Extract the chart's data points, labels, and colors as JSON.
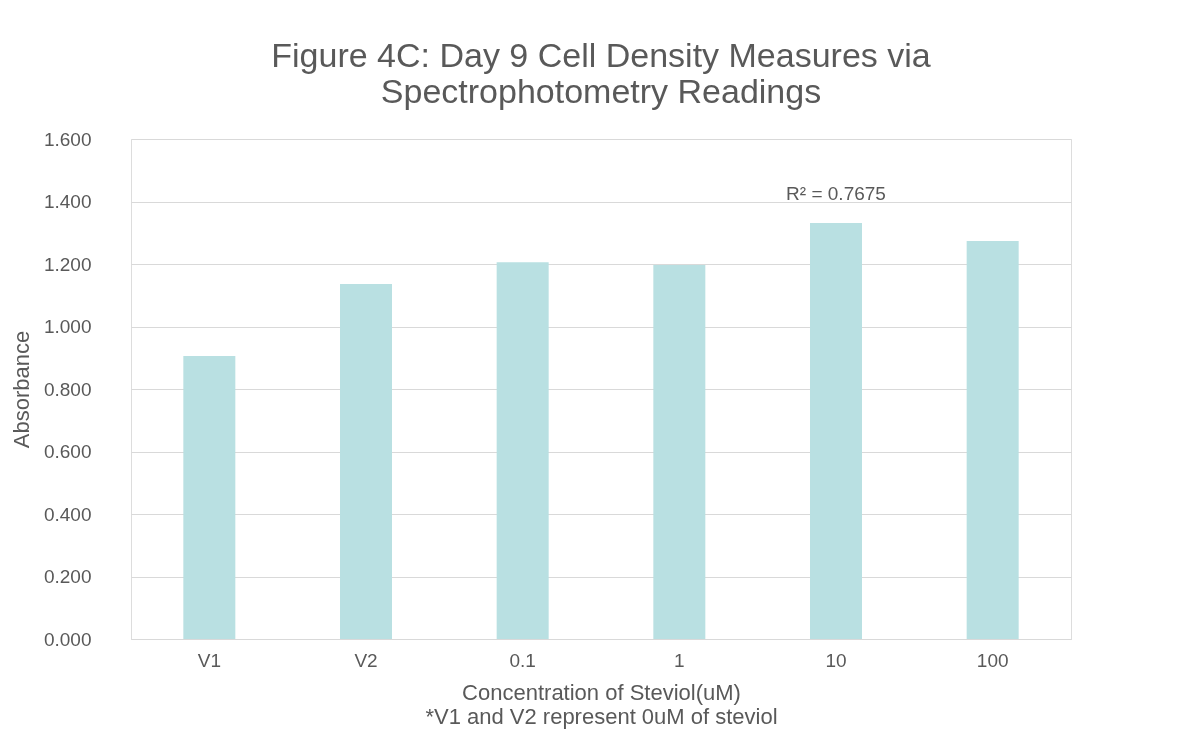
{
  "chart_data": {
    "type": "bar",
    "title": "Figure 4C:  Day 9 Cell Density Measures via\nSpectrophotometry Readings",
    "xlabel": "Concentration of Steviol(uM)",
    "ylabel": "Absorbance",
    "categories": [
      "V1",
      "V2",
      "0.1",
      "1",
      "10",
      "100"
    ],
    "values": [
      0.906,
      1.136,
      1.206,
      1.197,
      1.331,
      1.274
    ],
    "color": "#b9e0e2",
    "ylim": [
      0,
      1.6
    ],
    "yticks": [
      {
        "value": 0,
        "label": "0.000"
      },
      {
        "value": 0.2,
        "label": "0.200"
      },
      {
        "value": 0.4,
        "label": "0.400"
      },
      {
        "value": 0.6,
        "label": "0.600"
      },
      {
        "value": 0.8,
        "label": "0.800"
      },
      {
        "value": 1.0,
        "label": "1.000"
      },
      {
        "value": 1.2,
        "label": "1.200"
      },
      {
        "value": 1.4,
        "label": "1.400"
      },
      {
        "value": 1.6,
        "label": "1.600"
      }
    ],
    "grid": "y",
    "annotations": [
      "R² = 0.7675",
      "*V1 and V2 represent 0uM of steviol"
    ]
  }
}
